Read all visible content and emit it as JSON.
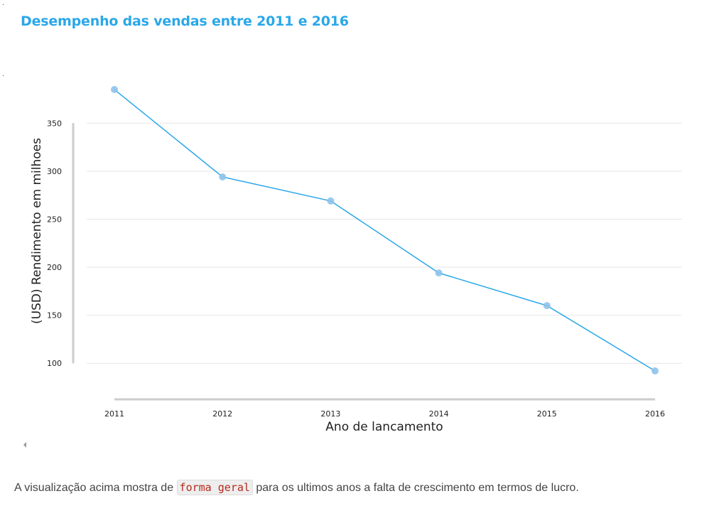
{
  "title": "Desempenho das vendas entre 2011 e 2016",
  "chart_data": {
    "type": "line",
    "title": "Desempenho das vendas entre 2011 e 2016",
    "xlabel": "Ano de lancamento",
    "ylabel": "(USD) Rendimento em milhoes",
    "categories": [
      "2011",
      "2012",
      "2013",
      "2014",
      "2015",
      "2016"
    ],
    "values": [
      385,
      294,
      269,
      194,
      160,
      92
    ],
    "y_ticks": [
      100,
      150,
      200,
      250,
      300,
      350
    ],
    "ylim": [
      92,
      385
    ],
    "grid": true,
    "line_color": "#2aa7e8",
    "marker_color": "#8fc3ea"
  },
  "caption": {
    "before": "A visualização acima mostra de ",
    "code": "forma geral",
    "after": " para os ultimos anos a falta de crescimento em termos de lucro."
  }
}
